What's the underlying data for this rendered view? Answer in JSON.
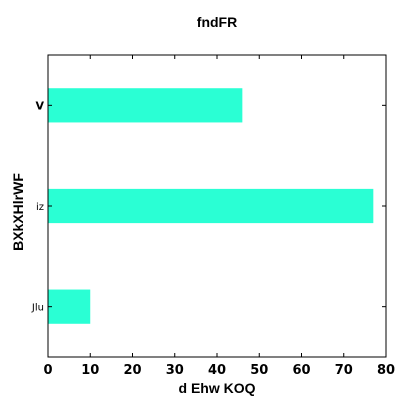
{
  "chart_data": {
    "type": "bar",
    "orientation": "horizontal",
    "title": "fndFR",
    "xlabel": "d Ehw KOQ",
    "ylabel": "BXkXHlrWF",
    "categories": [
      "Jlu",
      "iz",
      "V"
    ],
    "values": [
      10,
      77,
      46
    ],
    "xlim": [
      0,
      80
    ],
    "xticks": [
      0,
      10,
      20,
      30,
      40,
      50,
      60,
      70,
      80
    ],
    "bar_color": "#2affd4",
    "grid": false,
    "legend": "none"
  }
}
